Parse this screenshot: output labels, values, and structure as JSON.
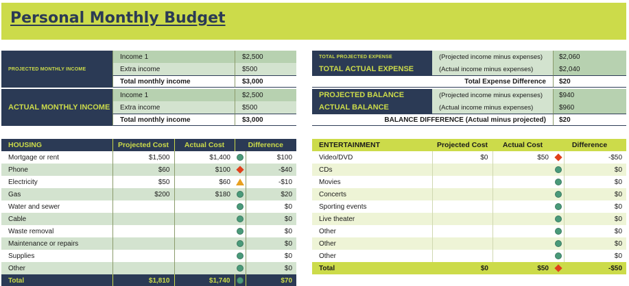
{
  "title": "Personal Monthly Budget",
  "projected_income": {
    "label": "PROJECTED MONTHLY INCOME",
    "rows": [
      {
        "label": "Income 1",
        "value": "$2,500"
      },
      {
        "label": "Extra income",
        "value": "$500"
      },
      {
        "label": "Total monthly income",
        "value": "$3,000"
      }
    ]
  },
  "actual_income": {
    "label": "ACTUAL MONTHLY INCOME",
    "rows": [
      {
        "label": "Income 1",
        "value": "$2,500"
      },
      {
        "label": "Extra income",
        "value": "$500"
      },
      {
        "label": "Total monthly income",
        "value": "$3,000"
      }
    ]
  },
  "summary": {
    "total_projected_expense": {
      "label": "TOTAL PROJECTED EXPENSE",
      "desc": "(Projected income minus expenses)",
      "value": "$2,060"
    },
    "total_actual_expense": {
      "label": "TOTAL ACTUAL EXPENSE",
      "desc": "(Actual income minus expenses)",
      "value": "$2,040"
    },
    "total_expense_difference": {
      "label": "Total Expense Difference",
      "value": "$20"
    },
    "projected_balance": {
      "label": "PROJECTED BALANCE",
      "desc": "(Projected income minus expenses)",
      "value": "$940"
    },
    "actual_balance": {
      "label": "ACTUAL BALANCE",
      "desc": "(Actual income minus expenses)",
      "value": "$960"
    },
    "balance_difference": {
      "label": "BALANCE DIFFERENCE (Actual minus projected)",
      "value": "$20"
    }
  },
  "housing": {
    "headers": [
      "HOUSING",
      "Projected Cost",
      "Actual Cost",
      "Difference"
    ],
    "rows": [
      {
        "item": "Mortgage or rent",
        "projected": "$1,500",
        "actual": "$1,400",
        "icon": "green-circle-icon",
        "difference": "$100"
      },
      {
        "item": "Phone",
        "projected": "$60",
        "actual": "$100",
        "icon": "red-diamond-icon",
        "difference": "-$40"
      },
      {
        "item": "Electricity",
        "projected": "$50",
        "actual": "$60",
        "icon": "yellow-triangle-icon",
        "difference": "-$10"
      },
      {
        "item": "Gas",
        "projected": "$200",
        "actual": "$180",
        "icon": "green-circle-icon",
        "difference": "$20"
      },
      {
        "item": "Water and sewer",
        "projected": "",
        "actual": "",
        "icon": "green-circle-icon",
        "difference": "$0"
      },
      {
        "item": "Cable",
        "projected": "",
        "actual": "",
        "icon": "green-circle-icon",
        "difference": "$0"
      },
      {
        "item": "Waste removal",
        "projected": "",
        "actual": "",
        "icon": "green-circle-icon",
        "difference": "$0"
      },
      {
        "item": "Maintenance or repairs",
        "projected": "",
        "actual": "",
        "icon": "green-circle-icon",
        "difference": "$0"
      },
      {
        "item": "Supplies",
        "projected": "",
        "actual": "",
        "icon": "green-circle-icon",
        "difference": "$0"
      },
      {
        "item": "Other",
        "projected": "",
        "actual": "",
        "icon": "green-circle-icon",
        "difference": "$0"
      }
    ],
    "total": {
      "item": "Total",
      "projected": "$1,810",
      "actual": "$1,740",
      "icon": "green-circle-icon",
      "difference": "$70"
    }
  },
  "entertainment": {
    "headers": [
      "ENTERTAINMENT",
      "Projected Cost",
      "Actual Cost",
      "Difference"
    ],
    "rows": [
      {
        "item": "Video/DVD",
        "projected": "$0",
        "actual": "$50",
        "icon": "red-diamond-icon",
        "difference": "-$50"
      },
      {
        "item": "CDs",
        "projected": "",
        "actual": "",
        "icon": "green-circle-icon",
        "difference": "$0"
      },
      {
        "item": "Movies",
        "projected": "",
        "actual": "",
        "icon": "green-circle-icon",
        "difference": "$0"
      },
      {
        "item": "Concerts",
        "projected": "",
        "actual": "",
        "icon": "green-circle-icon",
        "difference": "$0"
      },
      {
        "item": "Sporting events",
        "projected": "",
        "actual": "",
        "icon": "green-circle-icon",
        "difference": "$0"
      },
      {
        "item": "Live theater",
        "projected": "",
        "actual": "",
        "icon": "green-circle-icon",
        "difference": "$0"
      },
      {
        "item": "Other",
        "projected": "",
        "actual": "",
        "icon": "green-circle-icon",
        "difference": "$0"
      },
      {
        "item": "Other",
        "projected": "",
        "actual": "",
        "icon": "green-circle-icon",
        "difference": "$0"
      },
      {
        "item": "Other",
        "projected": "",
        "actual": "",
        "icon": "green-circle-icon",
        "difference": "$0"
      }
    ],
    "total": {
      "item": "Total",
      "projected": "$0",
      "actual": "$50",
      "icon": "red-diamond-icon",
      "difference": "-$50"
    }
  },
  "colors": {
    "navy": "#2b3a55",
    "lime": "#ccdb4a",
    "light_green": "#d3e3cf",
    "mid_green": "#b7d1b0",
    "indicator_green": "#4a9a7a",
    "indicator_red": "#e0401c",
    "indicator_yellow": "#e8a020"
  }
}
